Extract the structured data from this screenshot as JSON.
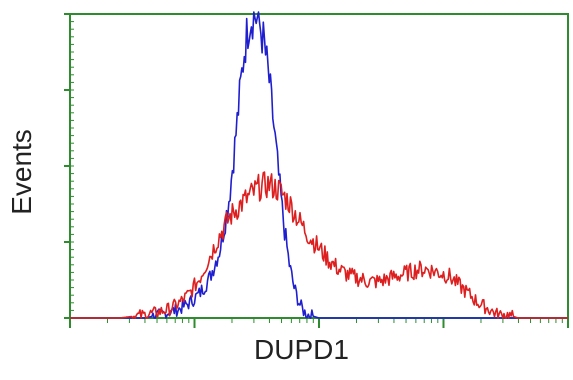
{
  "chart_data": {
    "type": "line",
    "title": "",
    "xlabel": "DUPD1",
    "ylabel": "Events",
    "xlim": [
      0,
      1
    ],
    "ylim": [
      0,
      1
    ],
    "x_scale": "log",
    "grid": false,
    "legend": "none",
    "axis_color": "#2e8b2e",
    "series": [
      {
        "color": "#1f1fd0",
        "x": [
          0.0,
          0.05,
          0.1,
          0.15,
          0.18,
          0.2,
          0.22,
          0.24,
          0.26,
          0.28,
          0.3,
          0.31,
          0.32,
          0.33,
          0.34,
          0.35,
          0.36,
          0.37,
          0.38,
          0.39,
          0.4,
          0.41,
          0.42,
          0.43,
          0.44,
          0.45,
          0.46,
          0.47,
          0.48,
          0.5,
          0.55,
          0.6,
          1.0
        ],
        "y": [
          0.0,
          0.0,
          0.0,
          0.0,
          0.01,
          0.02,
          0.03,
          0.05,
          0.08,
          0.13,
          0.22,
          0.3,
          0.4,
          0.55,
          0.72,
          0.88,
          0.98,
          1.0,
          0.97,
          0.9,
          0.78,
          0.62,
          0.45,
          0.3,
          0.18,
          0.1,
          0.05,
          0.02,
          0.01,
          0.0,
          0.0,
          0.0,
          0.0
        ]
      },
      {
        "color": "#dd1f1f",
        "x": [
          0.0,
          0.05,
          0.1,
          0.15,
          0.18,
          0.2,
          0.22,
          0.24,
          0.26,
          0.28,
          0.3,
          0.32,
          0.34,
          0.36,
          0.38,
          0.4,
          0.42,
          0.44,
          0.46,
          0.48,
          0.5,
          0.52,
          0.54,
          0.56,
          0.58,
          0.6,
          0.62,
          0.64,
          0.66,
          0.68,
          0.7,
          0.72,
          0.74,
          0.76,
          0.78,
          0.8,
          0.82,
          0.84,
          0.86,
          0.88,
          0.9,
          0.95,
          1.0
        ],
        "y": [
          0.0,
          0.0,
          0.0,
          0.01,
          0.02,
          0.03,
          0.05,
          0.08,
          0.13,
          0.2,
          0.27,
          0.33,
          0.37,
          0.4,
          0.43,
          0.44,
          0.42,
          0.38,
          0.32,
          0.27,
          0.23,
          0.19,
          0.16,
          0.14,
          0.13,
          0.12,
          0.12,
          0.13,
          0.14,
          0.15,
          0.16,
          0.16,
          0.15,
          0.14,
          0.11,
          0.08,
          0.05,
          0.03,
          0.01,
          0.01,
          0.0,
          0.0,
          0.0
        ]
      }
    ]
  }
}
